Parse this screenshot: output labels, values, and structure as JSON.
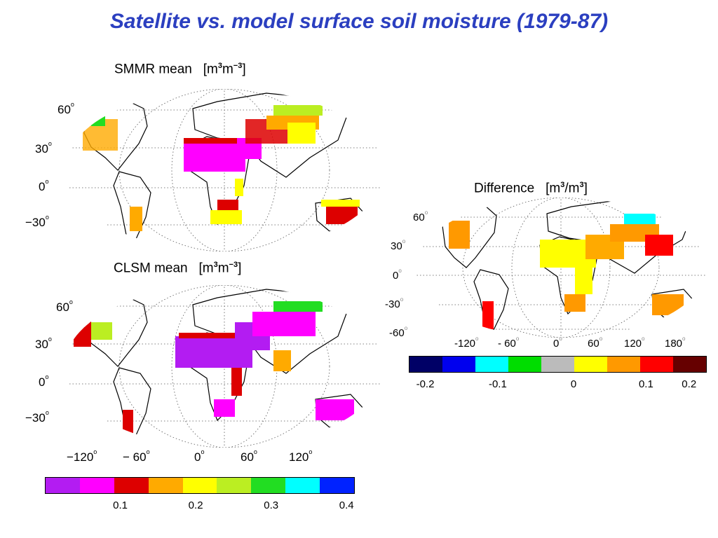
{
  "title": "Satellite vs. model surface soil moisture (1979-87)",
  "chart_data": [
    {
      "type": "heatmap",
      "title_main": "SMMR mean",
      "title_units": "[m3m-3]",
      "units_base1": "m",
      "units_exp1": "3",
      "units_base2": "m",
      "units_exp2": "−3",
      "lat_ticks": [
        "60",
        "30",
        "0",
        "−30"
      ],
      "lon_ticks": [],
      "grid": true
    },
    {
      "type": "heatmap",
      "title_main": "CLSM mean",
      "title_units": "[m3m-3]",
      "units_base1": "m",
      "units_exp1": "3",
      "units_base2": "m",
      "units_exp2": "−3",
      "lat_ticks": [
        "60",
        "30",
        "0",
        "−30"
      ],
      "lon_ticks": [
        "−120",
        "− 60",
        "0",
        "60",
        "120"
      ],
      "colorbar": {
        "colors": [
          "#b31cf2",
          "#ff00ff",
          "#dd0000",
          "#ffaa00",
          "#ffff00",
          "#bbee22",
          "#22dd22",
          "#00ffff",
          "#0022ff"
        ],
        "tick_labels": [
          "0.1",
          "0.2",
          "0.3",
          "0.4"
        ]
      },
      "grid": true
    },
    {
      "type": "heatmap",
      "title_main": "Difference",
      "title_units": "[m3/m3]",
      "lat_ticks": [
        "60",
        "30",
        "0",
        "-30",
        "-60"
      ],
      "lon_ticks": [
        "-120",
        "- 60",
        "0",
        "60",
        "120",
        "180"
      ],
      "colorbar": {
        "colors": [
          "#000066",
          "#0000ee",
          "#00ffff",
          "#00dd00",
          "#bbbbbb",
          "#ffff00",
          "#ff9900",
          "#ff0000",
          "#660000"
        ],
        "tick_labels": [
          "-0.2",
          "-0.1",
          "0",
          "0.1",
          "0.2"
        ]
      },
      "grid": true
    }
  ]
}
